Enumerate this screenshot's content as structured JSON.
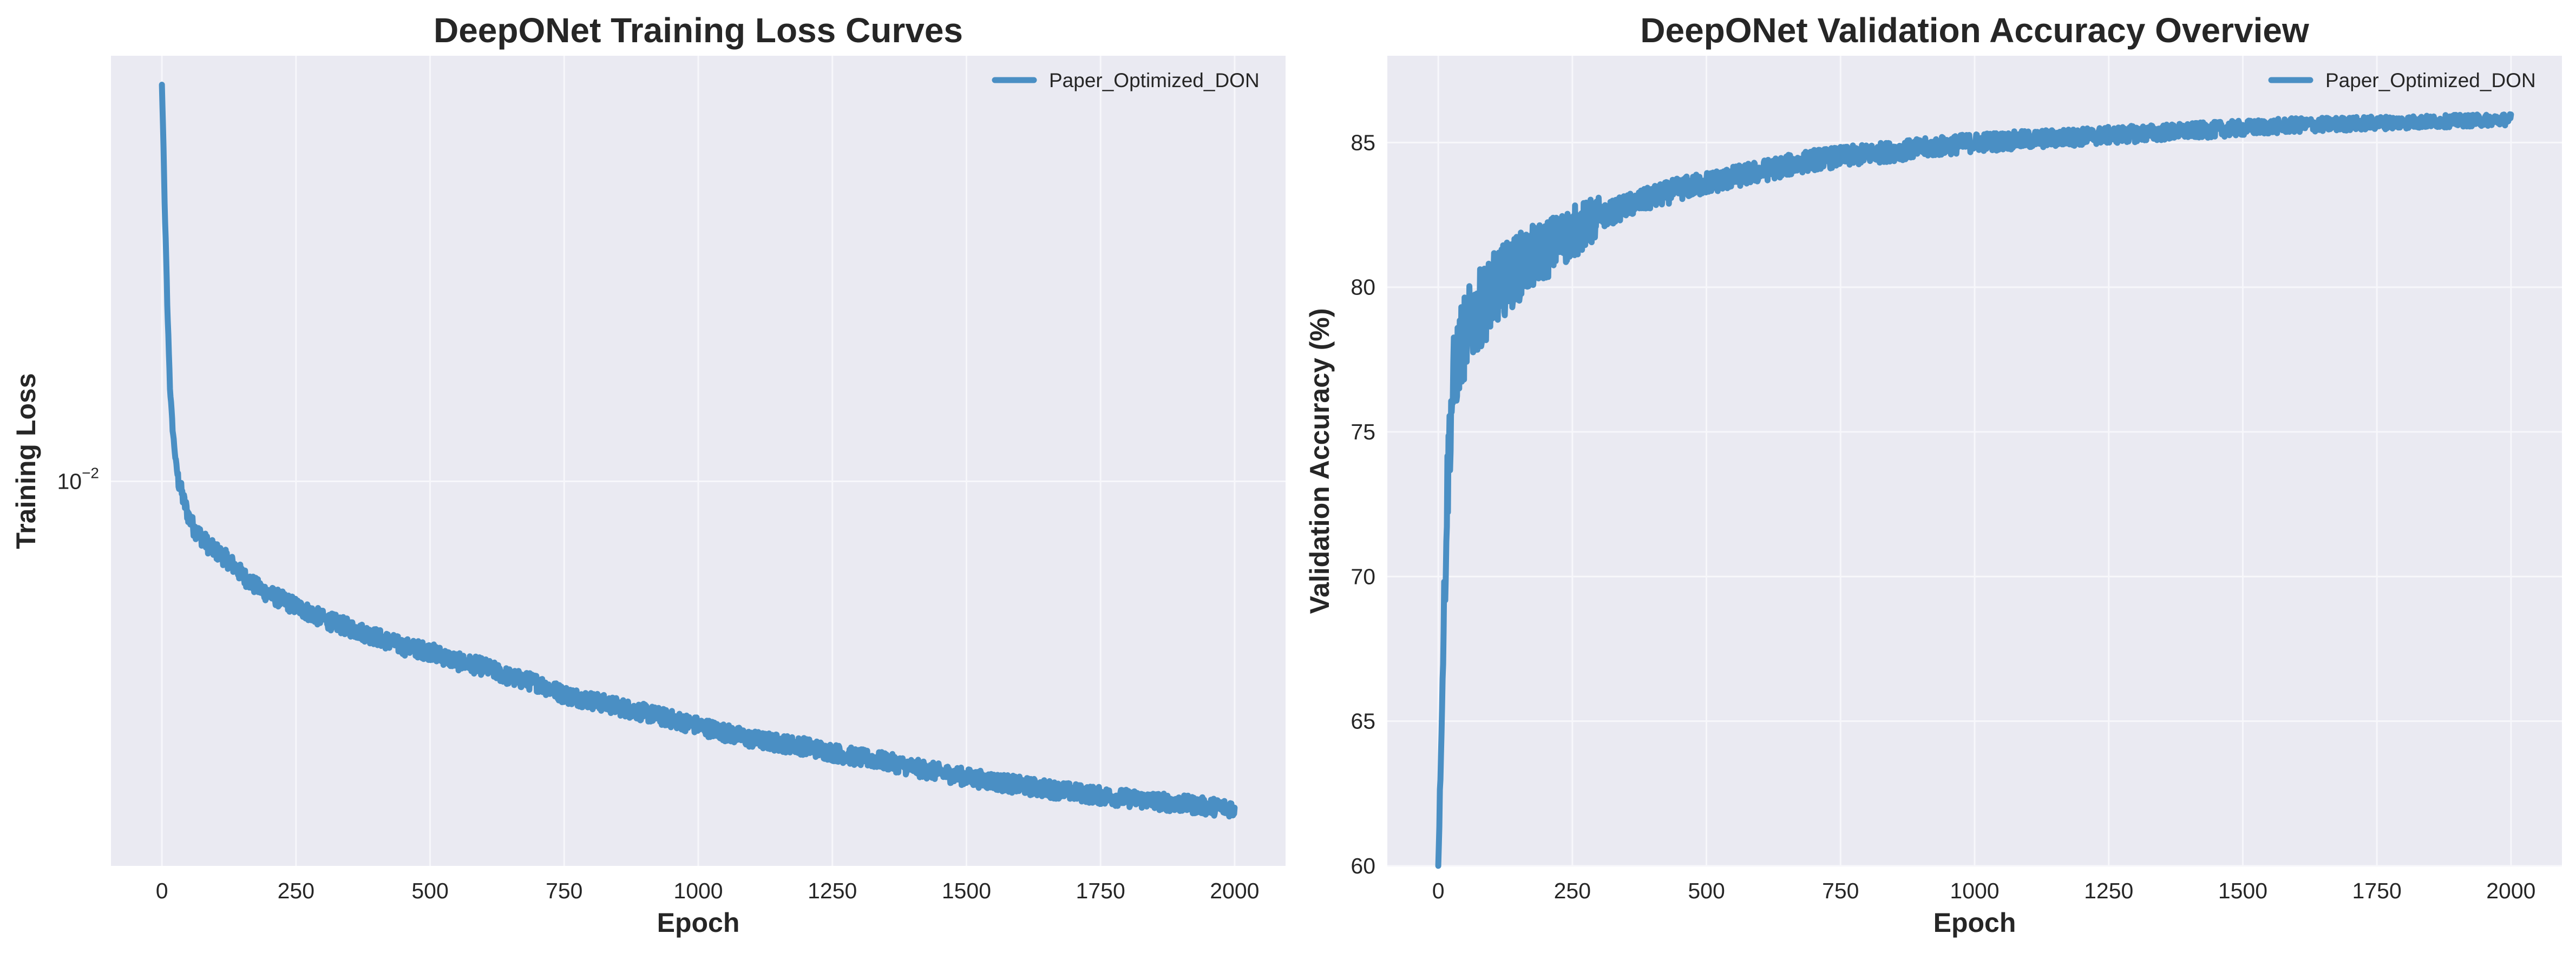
{
  "colors": {
    "axes_background": "#eaeaf2",
    "grid": "#f7f7fb",
    "series": "#4a8fc4",
    "text": "#262626"
  },
  "chart_data": [
    {
      "type": "line",
      "title": "DeepONet Training Loss Curves",
      "xlabel": "Epoch",
      "ylabel": "Training Loss",
      "yscale": "log",
      "xlim": [
        -95,
        2095
      ],
      "ylim": [
        0.00218,
        0.054
      ],
      "xticks": [
        0,
        250,
        500,
        750,
        1000,
        1250,
        1500,
        1750,
        2000
      ],
      "yticks": [
        {
          "value": 0.01,
          "base": "10",
          "exponent": "−2"
        }
      ],
      "grid": true,
      "legend_position": "top-right",
      "series": [
        {
          "name": "Paper_Optimized_DON",
          "color": "#4a8fc4",
          "x": [
            0,
            5,
            10,
            15,
            20,
            25,
            30,
            40,
            50,
            60,
            70,
            80,
            90,
            100,
            125,
            150,
            175,
            200,
            250,
            300,
            350,
            400,
            450,
            500,
            550,
            600,
            650,
            700,
            750,
            800,
            850,
            900,
            950,
            1000,
            1050,
            1100,
            1150,
            1200,
            1250,
            1300,
            1350,
            1400,
            1450,
            1500,
            1550,
            1600,
            1650,
            1700,
            1750,
            1800,
            1850,
            1900,
            1950,
            2000
          ],
          "y": [
            0.048,
            0.03,
            0.02,
            0.0145,
            0.0123,
            0.011,
            0.0101,
            0.0093,
            0.0087,
            0.0083,
            0.0081,
            0.0079,
            0.0077,
            0.0076,
            0.0073,
            0.0069,
            0.0066,
            0.0064,
            0.0061,
            0.0058,
            0.0056,
            0.0054,
            0.0052,
            0.0051,
            0.0049,
            0.0048,
            0.0046,
            0.0045,
            0.0043,
            0.0042,
            0.0041,
            0.004,
            0.0039,
            0.0038,
            0.0037,
            0.0036,
            0.00355,
            0.0035,
            0.00342,
            0.00335,
            0.0033,
            0.00322,
            0.00316,
            0.0031,
            0.00305,
            0.003,
            0.00296,
            0.00292,
            0.00288,
            0.00285,
            0.00282,
            0.00279,
            0.00276,
            0.00274
          ]
        }
      ]
    },
    {
      "type": "line",
      "title": "DeepONet Validation Accuracy Overview",
      "xlabel": "Epoch",
      "ylabel": "Validation Accuracy (%)",
      "xlim": [
        -95,
        2095
      ],
      "ylim": [
        60,
        88
      ],
      "xticks": [
        0,
        250,
        500,
        750,
        1000,
        1250,
        1500,
        1750,
        2000
      ],
      "yticks": [
        60,
        65,
        70,
        75,
        80,
        85
      ],
      "grid": true,
      "legend_position": "top-right",
      "series": [
        {
          "name": "Paper_Optimized_DON",
          "color": "#4a8fc4",
          "x": [
            0,
            5,
            10,
            15,
            20,
            25,
            30,
            40,
            50,
            60,
            70,
            80,
            100,
            125,
            150,
            175,
            200,
            250,
            300,
            350,
            400,
            450,
            500,
            550,
            600,
            650,
            700,
            750,
            800,
            850,
            900,
            950,
            1000,
            1050,
            1100,
            1150,
            1200,
            1250,
            1300,
            1350,
            1400,
            1450,
            1500,
            1550,
            1600,
            1650,
            1700,
            1750,
            1800,
            1850,
            1900,
            1950,
            2000
          ],
          "y": [
            60.0,
            64.0,
            68.0,
            72.0,
            74.5,
            76.0,
            77.0,
            77.8,
            78.3,
            78.7,
            79.0,
            79.3,
            79.8,
            80.3,
            80.7,
            81.0,
            81.3,
            81.9,
            82.4,
            82.8,
            83.1,
            83.4,
            83.6,
            83.8,
            84.0,
            84.2,
            84.4,
            84.5,
            84.6,
            84.7,
            84.8,
            84.9,
            85.0,
            85.05,
            85.1,
            85.15,
            85.2,
            85.25,
            85.3,
            85.35,
            85.4,
            85.45,
            85.5,
            85.55,
            85.6,
            85.62,
            85.65,
            85.68,
            85.7,
            85.72,
            85.75,
            85.77,
            85.8
          ]
        }
      ]
    }
  ]
}
